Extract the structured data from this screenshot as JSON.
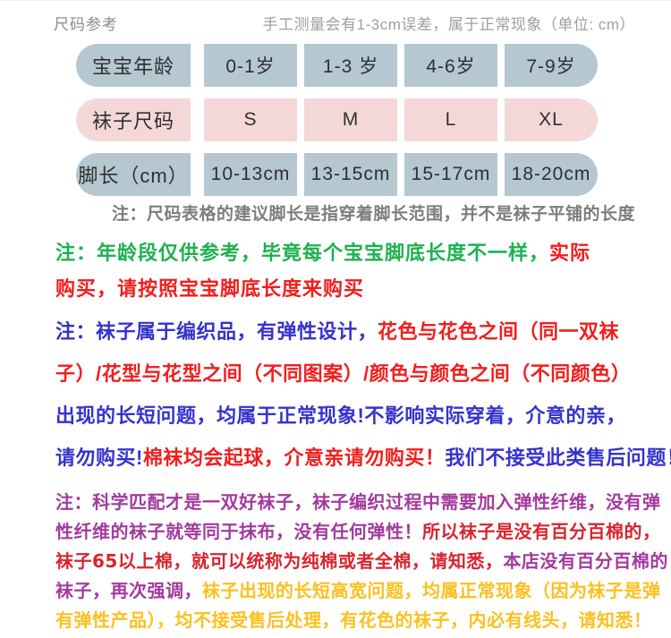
{
  "header": {
    "title": "尺码参考",
    "disclaimer": "手工测量会有1-3cm误差，属于正常现象（单位: cm）"
  },
  "table": {
    "rows": [
      {
        "theme": "blue",
        "label": "宝宝年龄",
        "cells": [
          "0-1岁",
          "1-3 岁",
          "4-6岁",
          "7-9岁"
        ]
      },
      {
        "theme": "pink",
        "label": "袜子尺码",
        "cells": [
          "S",
          "M",
          "L",
          "XL"
        ]
      },
      {
        "theme": "blue",
        "label": "脚长（cm）",
        "cells": [
          "10-13cm",
          "13-15cm",
          "15-17cm",
          "18-20cm"
        ]
      }
    ],
    "footnote": "注：尺码表格的建议脚长是指穿着脚长范围，并不是袜子平铺的长度"
  },
  "colors": {
    "row_blue": "#b5c7d1",
    "row_pink": "#f4d8d8",
    "green": "#1eb150",
    "red": "#f21d1d",
    "blue": "#3533cd",
    "purple": "#a23a9e",
    "crimson": "#d9232e",
    "gold": "#fcc01e",
    "footnote_gray": "#7d7d7d"
  },
  "notes": {
    "a": {
      "lines": [
        [
          {
            "text": "注：年龄段仅供参考，毕竟每个宝宝脚底长度不一样，",
            "color": "green"
          },
          {
            "text": "实际",
            "color": "red"
          }
        ],
        [
          {
            "text": "购买，请按照宝宝脚底长度来购买",
            "color": "red"
          }
        ]
      ]
    },
    "b": {
      "lines": [
        [
          {
            "text": "注：袜子属于编织品，有弹性设计，",
            "color": "blue"
          },
          {
            "text": "花色与花色之间（同一双袜",
            "color": "red"
          }
        ],
        [
          {
            "text": "子）/花型与花型之间（不同图案）/颜色与颜色之间（不同颜色）",
            "color": "red"
          }
        ],
        [
          {
            "text": "出现的长短问题，均属于正常现象!不影响实际穿着，介意的亲，",
            "color": "blue"
          }
        ],
        [
          {
            "text": "请勿购买!",
            "color": "blue"
          },
          {
            "text": "棉袜均会起球，介意亲请勿购买！",
            "color": "red"
          },
          {
            "text": "我们不接受此类售后问题！",
            "color": "blue"
          }
        ]
      ]
    },
    "c": {
      "lines": [
        [
          {
            "text": "注：科学匹配才是一双好袜子，袜子编织过程中需要加入弹性纤维，没有弹",
            "color": "purple"
          }
        ],
        [
          {
            "text": "性纤维的袜子就等同于抹布，没有任何弹性！",
            "color": "purple"
          },
          {
            "text": "所以袜子是没有百分百棉的，",
            "color": "crimson"
          }
        ],
        [
          {
            "text": "袜子65以上棉，就可以统称为纯棉或者全棉，请知悉，",
            "color": "crimson"
          },
          {
            "text": "本店没有百分百棉的",
            "color": "purple"
          }
        ],
        [
          {
            "text": "袜子，再次强调，",
            "color": "purple"
          },
          {
            "text": "袜子出现的长短高宽问题，均属正常现象（因为袜子是弹",
            "color": "gold"
          }
        ],
        [
          {
            "text": "有弹性产品），均不接受售后处理，有花色的袜子，内必有线头，请知悉！",
            "color": "gold"
          }
        ]
      ]
    }
  }
}
